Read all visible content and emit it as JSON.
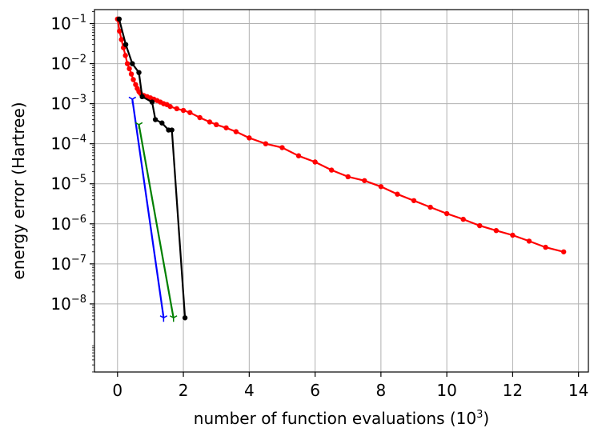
{
  "chart_data": {
    "type": "line",
    "title": "",
    "xlabel": "number of function evaluations (10",
    "xlabel_sup": "3",
    "xlabel_end": ")",
    "ylabel": "energy error (Hartree)",
    "xlim": [
      -0.7,
      14.3
    ],
    "ylim_log10": [
      -9.7,
      -0.65
    ],
    "yscale": "log",
    "grid": true,
    "x_ticks": [
      0,
      2,
      4,
      6,
      8,
      10,
      12,
      14
    ],
    "x_tick_labels": [
      "0",
      "2",
      "4",
      "6",
      "8",
      "10",
      "12",
      "14"
    ],
    "y_ticks_log10": [
      -1,
      -2,
      -3,
      -4,
      -5,
      -6,
      -7,
      -8
    ],
    "y_tick_base": "10",
    "y_tick_exponents": [
      "−1",
      "−2",
      "−3",
      "−4",
      "−5",
      "−6",
      "−7",
      "−8"
    ],
    "series": [
      {
        "color": "#ff0000",
        "marker": "circle",
        "x": [
          0.0,
          0.06,
          0.12,
          0.18,
          0.24,
          0.3,
          0.36,
          0.42,
          0.48,
          0.55,
          0.6,
          0.65,
          0.7,
          0.8,
          0.9,
          1.0,
          1.1,
          1.2,
          1.3,
          1.4,
          1.5,
          1.6,
          1.8,
          2.0,
          2.2,
          2.5,
          2.8,
          3.0,
          3.3,
          3.6,
          4.0,
          4.5,
          5.0,
          5.5,
          6.0,
          6.5,
          7.0,
          7.5,
          8.0,
          8.5,
          9.0,
          9.5,
          10.0,
          10.5,
          11.0,
          11.5,
          12.0,
          12.5,
          13.0,
          13.55
        ],
        "y": [
          0.13,
          0.065,
          0.04,
          0.025,
          0.016,
          0.01,
          0.0075,
          0.0055,
          0.004,
          0.003,
          0.0024,
          0.002,
          0.0018,
          0.0016,
          0.0015,
          0.0014,
          0.0013,
          0.0012,
          0.0011,
          0.001,
          0.00095,
          0.00085,
          0.00075,
          0.00068,
          0.0006,
          0.00045,
          0.00035,
          0.0003,
          0.00025,
          0.0002,
          0.00014,
          0.0001,
          8e-05,
          5e-05,
          3.5e-05,
          2.2e-05,
          1.5e-05,
          1.2e-05,
          8.5e-06,
          5.5e-06,
          3.8e-06,
          2.6e-06,
          1.8e-06,
          1.3e-06,
          9e-07,
          6.8e-07,
          5.2e-07,
          3.7e-07,
          2.6e-07,
          2e-07
        ]
      },
      {
        "color": "#000000",
        "marker": "circle",
        "x": [
          0.05,
          0.25,
          0.45,
          0.65,
          0.75,
          1.05,
          1.15,
          1.35,
          1.55,
          1.65,
          2.05
        ],
        "y": [
          0.13,
          0.03,
          0.01,
          0.006,
          0.0015,
          0.0011,
          0.0004,
          0.00033,
          0.00022,
          0.00022,
          4.5e-09
        ]
      },
      {
        "color": "#0000ff",
        "marker": "tri_down",
        "x": [
          0.45,
          1.4
        ],
        "y": [
          0.0013,
          4.5e-09
        ]
      },
      {
        "color": "#008000",
        "marker": "tri_down",
        "x": [
          0.65,
          1.7
        ],
        "y": [
          0.0003,
          4.5e-09
        ]
      }
    ]
  }
}
